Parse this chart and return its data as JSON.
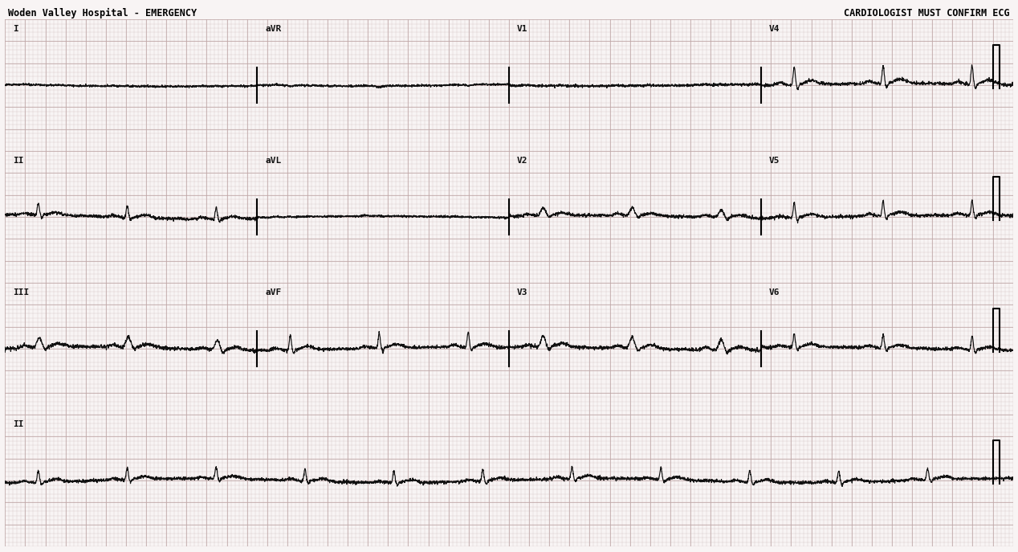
{
  "title_left": "Woden Valley Hospital - EMERGENCY",
  "title_right": "CARDIOLOGIST MUST CONFIRM ECG",
  "bg_color": "#f8f4f4",
  "grid_dot_color": "#c8b8b8",
  "grid_major_color": "#c0a8a8",
  "ecg_color": "#111111",
  "label_color": "#111111",
  "fig_width": 12.68,
  "fig_height": 6.87,
  "dpi": 100,
  "sample_rate": 500,
  "duration": 10.0,
  "heart_rate": 68,
  "row_labels": [
    "I",
    "II",
    "III",
    "II"
  ],
  "segment_labels_row0": [
    "I",
    "aVR",
    "V1",
    "V4"
  ],
  "segment_labels_row1": [
    "II",
    "aVL",
    "V2",
    "V5"
  ],
  "segment_labels_row2": [
    "III",
    "aVF",
    "V3",
    "V6"
  ],
  "segment_labels_row3": [
    "II"
  ],
  "n_rows": 4,
  "seg_duration": 2.5
}
